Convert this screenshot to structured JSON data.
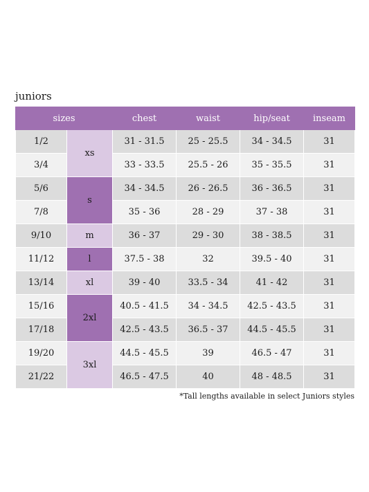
{
  "title": "juniors",
  "header": {
    "sizes": "sizes",
    "chest": "chest",
    "waist": "waist",
    "hip_seat": "hip/seat",
    "inseam": "inseam"
  },
  "rows": [
    {
      "size": "1/2",
      "chest": "31 - 31.5",
      "waist": "25 - 25.5",
      "hip": "34 - 34.5",
      "inseam": "31"
    },
    {
      "size": "3/4",
      "chest": "33 - 33.5",
      "waist": "25.5 - 26",
      "hip": "35 - 35.5",
      "inseam": "31"
    },
    {
      "size": "5/6",
      "chest": "34 - 34.5",
      "waist": "26 - 26.5",
      "hip": "36 - 36.5",
      "inseam": "31"
    },
    {
      "size": "7/8",
      "chest": "35 - 36",
      "waist": "28 - 29",
      "hip": "37 - 38",
      "inseam": "31"
    },
    {
      "size": "9/10",
      "chest": "36 - 37",
      "waist": "29 - 30",
      "hip": "38 - 38.5",
      "inseam": "31"
    },
    {
      "size": "11/12",
      "chest": "37.5 - 38",
      "waist": "32",
      "hip": "39.5 - 40",
      "inseam": "31"
    },
    {
      "size": "13/14",
      "chest": "39 - 40",
      "waist": "33.5 - 34",
      "hip": "41 - 42",
      "inseam": "31"
    },
    {
      "size": "15/16",
      "chest": "40.5 - 41.5",
      "waist": "34 - 34.5",
      "hip": "42.5 - 43.5",
      "inseam": "31"
    },
    {
      "size": "17/18",
      "chest": "42.5 - 43.5",
      "waist": "36.5 - 37",
      "hip": "44.5 - 45.5",
      "inseam": "31"
    },
    {
      "size": "19/20",
      "chest": "44.5 - 45.5",
      "waist": "39",
      "hip": "46.5 - 47",
      "inseam": "31"
    },
    {
      "size": "21/22",
      "chest": "46.5 - 47.5",
      "waist": "40",
      "hip": "48 - 48.5",
      "inseam": "31"
    }
  ],
  "codes": {
    "xs": "xs",
    "s": "s",
    "m": "m",
    "l": "l",
    "xl": "xl",
    "xxl": "2xl",
    "xxxl": "3xl"
  },
  "footnote": "*Tall lengths available in select Juniors styles",
  "colors": {
    "header_purple": "#9f70b1",
    "light_purple": "#dbc9e3",
    "row_dark": "#dcdcdc",
    "row_light": "#f1f1f1"
  }
}
